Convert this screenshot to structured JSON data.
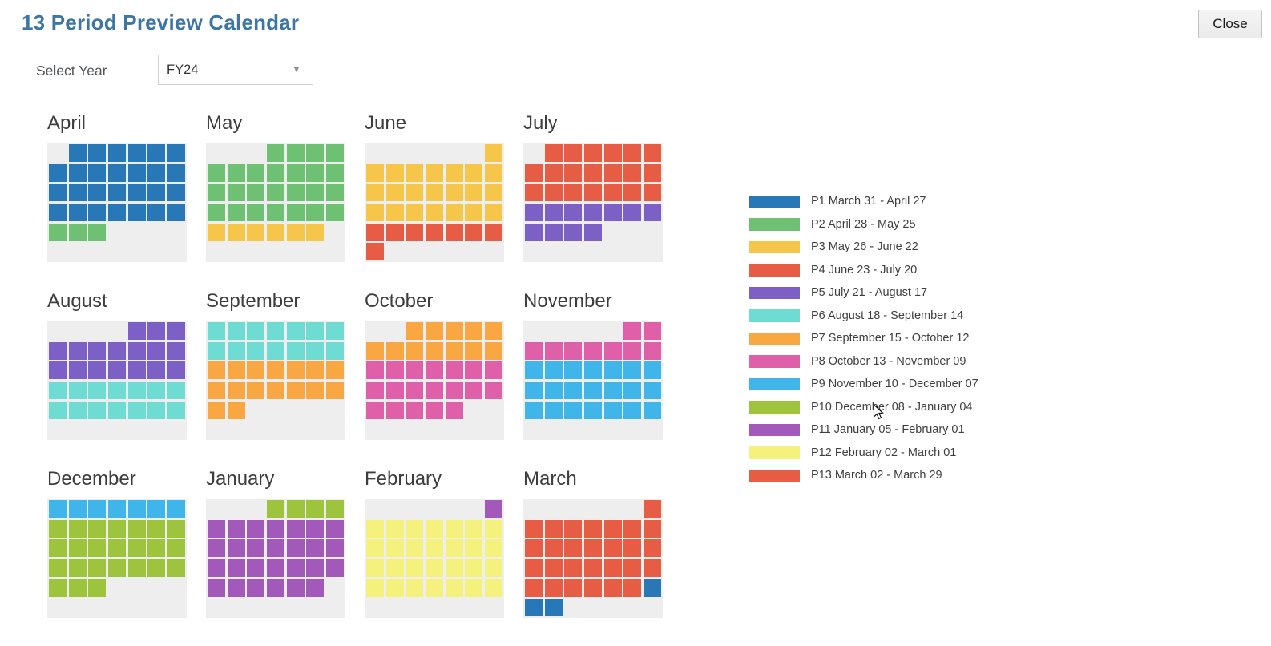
{
  "header": {
    "title": "13 Period Preview Calendar",
    "close_label": "Close"
  },
  "year_selector": {
    "label": "Select Year",
    "value": "FY24"
  },
  "colors": {
    "accent_title": "#3e76a3",
    "panel_bg": "#eeeeee",
    "p1": "#2878b8",
    "p2": "#6ec072",
    "p3": "#f6c64a",
    "p4": "#e65c44",
    "p5": "#7d60c6",
    "p6": "#6edcd3",
    "p7": "#f8a742",
    "p8": "#df60a9",
    "p9": "#3fb5e9",
    "p10": "#9ec43d",
    "p11": "#a259ba",
    "p12": "#f5f17d",
    "p13": "#e65c44"
  },
  "legend": [
    {
      "period": "p1",
      "label": "P1 March 31 - April 27"
    },
    {
      "period": "p2",
      "label": "P2 April 28 - May 25"
    },
    {
      "period": "p3",
      "label": "P3 May 26 - June 22"
    },
    {
      "period": "p4",
      "label": "P4 June 23 - July 20"
    },
    {
      "period": "p5",
      "label": "P5 July 21 - August 17"
    },
    {
      "period": "p6",
      "label": "P6 August 18 - September 14"
    },
    {
      "period": "p7",
      "label": "P7 September 15 - October 12"
    },
    {
      "period": "p8",
      "label": "P8 October 13 - November 09"
    },
    {
      "period": "p9",
      "label": "P9 November 10 - December 07"
    },
    {
      "period": "p10",
      "label": "P10 December 08 - January 04"
    },
    {
      "period": "p11",
      "label": "P11 January 05 - February 01"
    },
    {
      "period": "p12",
      "label": "P12 February 02 - March 01"
    },
    {
      "period": "p13",
      "label": "P13 March 02 - March 29"
    }
  ],
  "months": [
    {
      "name": "April",
      "grid": [
        [
          "",
          "p1",
          "p1",
          "p1",
          "p1",
          "p1",
          "p1"
        ],
        [
          "p1",
          "p1",
          "p1",
          "p1",
          "p1",
          "p1",
          "p1"
        ],
        [
          "p1",
          "p1",
          "p1",
          "p1",
          "p1",
          "p1",
          "p1"
        ],
        [
          "p1",
          "p1",
          "p1",
          "p1",
          "p1",
          "p1",
          "p1"
        ],
        [
          "p2",
          "p2",
          "p2",
          "",
          "",
          "",
          ""
        ],
        [
          "",
          "",
          "",
          "",
          "",
          "",
          ""
        ]
      ]
    },
    {
      "name": "May",
      "grid": [
        [
          "",
          "",
          "",
          "p2",
          "p2",
          "p2",
          "p2"
        ],
        [
          "p2",
          "p2",
          "p2",
          "p2",
          "p2",
          "p2",
          "p2"
        ],
        [
          "p2",
          "p2",
          "p2",
          "p2",
          "p2",
          "p2",
          "p2"
        ],
        [
          "p2",
          "p2",
          "p2",
          "p2",
          "p2",
          "p2",
          "p2"
        ],
        [
          "p3",
          "p3",
          "p3",
          "p3",
          "p3",
          "p3",
          ""
        ],
        [
          "",
          "",
          "",
          "",
          "",
          "",
          ""
        ]
      ]
    },
    {
      "name": "June",
      "grid": [
        [
          "",
          "",
          "",
          "",
          "",
          "",
          "p3"
        ],
        [
          "p3",
          "p3",
          "p3",
          "p3",
          "p3",
          "p3",
          "p3"
        ],
        [
          "p3",
          "p3",
          "p3",
          "p3",
          "p3",
          "p3",
          "p3"
        ],
        [
          "p3",
          "p3",
          "p3",
          "p3",
          "p3",
          "p3",
          "p3"
        ],
        [
          "p4",
          "p4",
          "p4",
          "p4",
          "p4",
          "p4",
          "p4"
        ],
        [
          "p4",
          "",
          "",
          "",
          "",
          "",
          ""
        ]
      ]
    },
    {
      "name": "July",
      "grid": [
        [
          "",
          "p4",
          "p4",
          "p4",
          "p4",
          "p4",
          "p4"
        ],
        [
          "p4",
          "p4",
          "p4",
          "p4",
          "p4",
          "p4",
          "p4"
        ],
        [
          "p4",
          "p4",
          "p4",
          "p4",
          "p4",
          "p4",
          "p4"
        ],
        [
          "p5",
          "p5",
          "p5",
          "p5",
          "p5",
          "p5",
          "p5"
        ],
        [
          "p5",
          "p5",
          "p5",
          "p5",
          "",
          "",
          ""
        ],
        [
          "",
          "",
          "",
          "",
          "",
          "",
          ""
        ]
      ]
    },
    {
      "name": "August",
      "grid": [
        [
          "",
          "",
          "",
          "",
          "p5",
          "p5",
          "p5"
        ],
        [
          "p5",
          "p5",
          "p5",
          "p5",
          "p5",
          "p5",
          "p5"
        ],
        [
          "p5",
          "p5",
          "p5",
          "p5",
          "p5",
          "p5",
          "p5"
        ],
        [
          "p6",
          "p6",
          "p6",
          "p6",
          "p6",
          "p6",
          "p6"
        ],
        [
          "p6",
          "p6",
          "p6",
          "p6",
          "p6",
          "p6",
          "p6"
        ],
        [
          "",
          "",
          "",
          "",
          "",
          "",
          ""
        ]
      ]
    },
    {
      "name": "September",
      "grid": [
        [
          "p6",
          "p6",
          "p6",
          "p6",
          "p6",
          "p6",
          "p6"
        ],
        [
          "p6",
          "p6",
          "p6",
          "p6",
          "p6",
          "p6",
          "p6"
        ],
        [
          "p7",
          "p7",
          "p7",
          "p7",
          "p7",
          "p7",
          "p7"
        ],
        [
          "p7",
          "p7",
          "p7",
          "p7",
          "p7",
          "p7",
          "p7"
        ],
        [
          "p7",
          "p7",
          "",
          "",
          "",
          "",
          ""
        ],
        [
          "",
          "",
          "",
          "",
          "",
          "",
          ""
        ]
      ]
    },
    {
      "name": "October",
      "grid": [
        [
          "",
          "",
          "p7",
          "p7",
          "p7",
          "p7",
          "p7"
        ],
        [
          "p7",
          "p7",
          "p7",
          "p7",
          "p7",
          "p7",
          "p7"
        ],
        [
          "p8",
          "p8",
          "p8",
          "p8",
          "p8",
          "p8",
          "p8"
        ],
        [
          "p8",
          "p8",
          "p8",
          "p8",
          "p8",
          "p8",
          "p8"
        ],
        [
          "p8",
          "p8",
          "p8",
          "p8",
          "p8",
          "",
          ""
        ],
        [
          "",
          "",
          "",
          "",
          "",
          "",
          ""
        ]
      ]
    },
    {
      "name": "November",
      "grid": [
        [
          "",
          "",
          "",
          "",
          "",
          "p8",
          "p8"
        ],
        [
          "p8",
          "p8",
          "p8",
          "p8",
          "p8",
          "p8",
          "p8"
        ],
        [
          "p9",
          "p9",
          "p9",
          "p9",
          "p9",
          "p9",
          "p9"
        ],
        [
          "p9",
          "p9",
          "p9",
          "p9",
          "p9",
          "p9",
          "p9"
        ],
        [
          "p9",
          "p9",
          "p9",
          "p9",
          "p9",
          "p9",
          "p9"
        ],
        [
          "",
          "",
          "",
          "",
          "",
          "",
          ""
        ]
      ]
    },
    {
      "name": "December",
      "grid": [
        [
          "p9",
          "p9",
          "p9",
          "p9",
          "p9",
          "p9",
          "p9"
        ],
        [
          "p10",
          "p10",
          "p10",
          "p10",
          "p10",
          "p10",
          "p10"
        ],
        [
          "p10",
          "p10",
          "p10",
          "p10",
          "p10",
          "p10",
          "p10"
        ],
        [
          "p10",
          "p10",
          "p10",
          "p10",
          "p10",
          "p10",
          "p10"
        ],
        [
          "p10",
          "p10",
          "p10",
          "",
          "",
          "",
          ""
        ],
        [
          "",
          "",
          "",
          "",
          "",
          "",
          ""
        ]
      ]
    },
    {
      "name": "January",
      "grid": [
        [
          "",
          "",
          "",
          "p10",
          "p10",
          "p10",
          "p10"
        ],
        [
          "p11",
          "p11",
          "p11",
          "p11",
          "p11",
          "p11",
          "p11"
        ],
        [
          "p11",
          "p11",
          "p11",
          "p11",
          "p11",
          "p11",
          "p11"
        ],
        [
          "p11",
          "p11",
          "p11",
          "p11",
          "p11",
          "p11",
          "p11"
        ],
        [
          "p11",
          "p11",
          "p11",
          "p11",
          "p11",
          "p11",
          ""
        ],
        [
          "",
          "",
          "",
          "",
          "",
          "",
          ""
        ]
      ]
    },
    {
      "name": "February",
      "grid": [
        [
          "",
          "",
          "",
          "",
          "",
          "",
          "p11"
        ],
        [
          "p12",
          "p12",
          "p12",
          "p12",
          "p12",
          "p12",
          "p12"
        ],
        [
          "p12",
          "p12",
          "p12",
          "p12",
          "p12",
          "p12",
          "p12"
        ],
        [
          "p12",
          "p12",
          "p12",
          "p12",
          "p12",
          "p12",
          "p12"
        ],
        [
          "p12",
          "p12",
          "p12",
          "p12",
          "p12",
          "p12",
          "p12"
        ],
        [
          "",
          "",
          "",
          "",
          "",
          "",
          ""
        ]
      ]
    },
    {
      "name": "March",
      "grid": [
        [
          "",
          "",
          "",
          "",
          "",
          "",
          "p13"
        ],
        [
          "p13",
          "p13",
          "p13",
          "p13",
          "p13",
          "p13",
          "p13"
        ],
        [
          "p13",
          "p13",
          "p13",
          "p13",
          "p13",
          "p13",
          "p13"
        ],
        [
          "p13",
          "p13",
          "p13",
          "p13",
          "p13",
          "p13",
          "p13"
        ],
        [
          "p13",
          "p13",
          "p13",
          "p13",
          "p13",
          "p13",
          "p1"
        ],
        [
          "p1",
          "p1",
          "",
          "",
          "",
          "",
          ""
        ]
      ]
    }
  ]
}
